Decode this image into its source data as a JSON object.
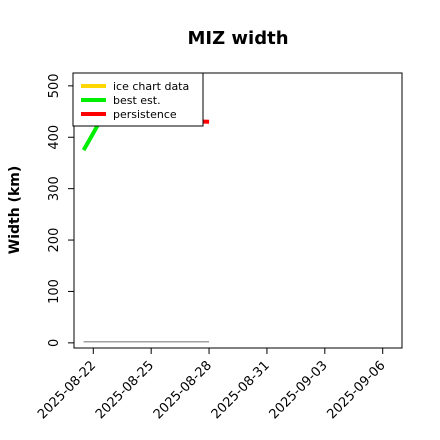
{
  "chart_data": {
    "type": "line",
    "title": "MIZ width",
    "xlabel": "",
    "ylabel": "Width (km)",
    "ylim": [
      -10,
      525
    ],
    "xlim": [
      "2025-08-21",
      "2025-09-07"
    ],
    "yticks": [
      0,
      100,
      200,
      300,
      400,
      500
    ],
    "xticks": [
      "2025-08-22",
      "2025-08-25",
      "2025-08-28",
      "2025-08-31",
      "2025-09-03",
      "2025-09-06"
    ],
    "legend_position": "top-left",
    "series": [
      {
        "name": "ice chart data",
        "color": "#ffd700",
        "points": []
      },
      {
        "name": "best est.",
        "color": "#00ee00",
        "points": [
          {
            "x": "2025-08-21T12:00",
            "y": 375
          },
          {
            "x": "2025-08-22T00:00",
            "y": 408
          },
          {
            "x": "2025-08-22T06:00",
            "y": 425
          }
        ]
      },
      {
        "name": "persistence",
        "color": "#ff0000",
        "points": [
          {
            "x": "2025-08-27T00:00",
            "y": 431
          },
          {
            "x": "2025-08-28T00:00",
            "y": 430
          }
        ]
      },
      {
        "name": "",
        "color": "#808080",
        "points": [
          {
            "x": "2025-08-21T12:00",
            "y": 2
          },
          {
            "x": "2025-08-28T00:00",
            "y": 2
          }
        ]
      }
    ]
  }
}
